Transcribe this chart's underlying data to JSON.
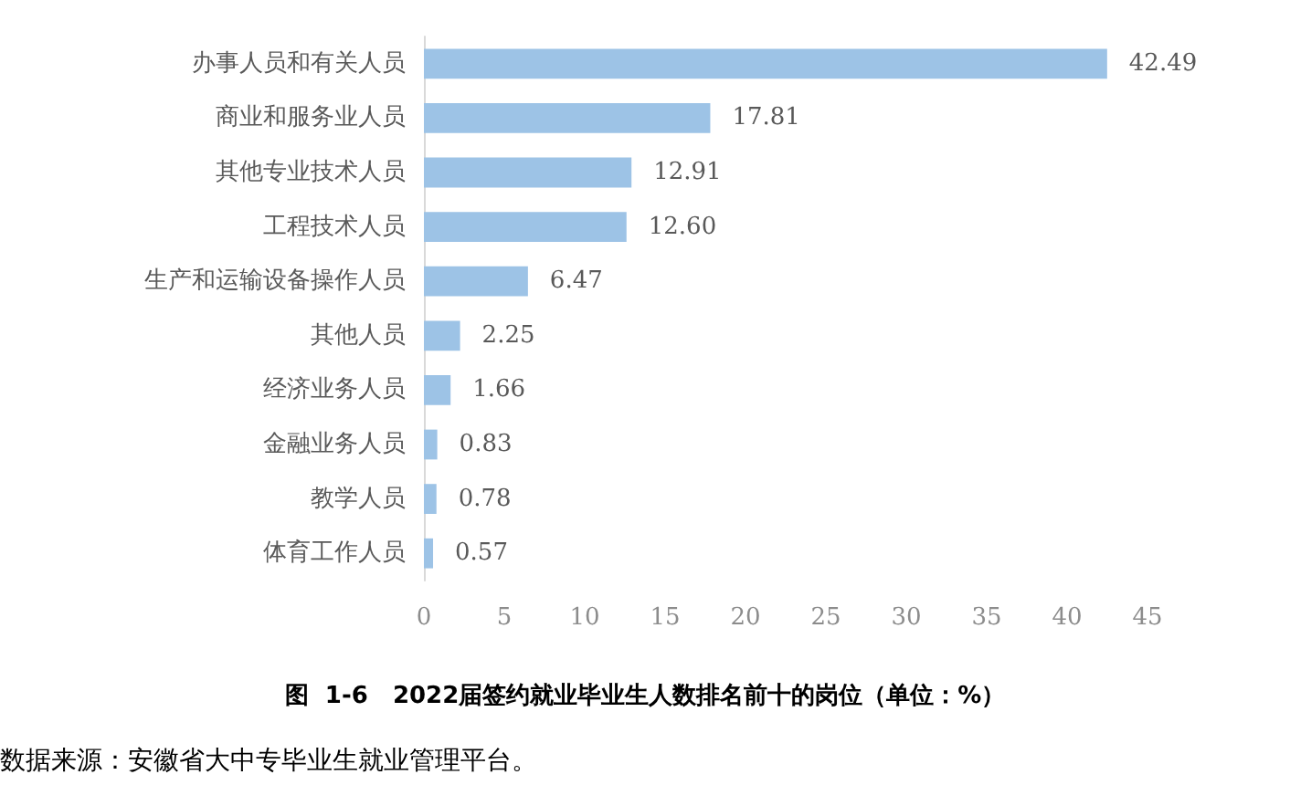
{
  "chart_data": {
    "type": "bar",
    "orientation": "horizontal",
    "title": "图  1-6   2022届签约就业毕业生人数排名前十的岗位（单位：%）",
    "categories": [
      "办事人员和有关人员",
      "商业和服务业人员",
      "其他专业技术人员",
      "工程技术人员",
      "生产和运输设备操作人员",
      "其他人员",
      "经济业务人员",
      "金融业务人员",
      "教学人员",
      "体育工作人员"
    ],
    "values": [
      42.49,
      17.81,
      12.91,
      12.6,
      6.47,
      2.25,
      1.66,
      0.83,
      0.78,
      0.57
    ],
    "value_labels": [
      "42.49",
      "17.81",
      "12.91",
      "12.60",
      "6.47",
      "2.25",
      "1.66",
      "0.83",
      "0.78",
      "0.57"
    ],
    "color": "#9dc3e6",
    "xlim": [
      0,
      45
    ],
    "xticks": [
      0,
      5,
      10,
      15,
      20,
      25,
      30,
      35,
      40,
      45
    ],
    "grid": false,
    "annotations": [
      "数据来源：安徽省大中专毕业生就业管理平台。"
    ]
  }
}
